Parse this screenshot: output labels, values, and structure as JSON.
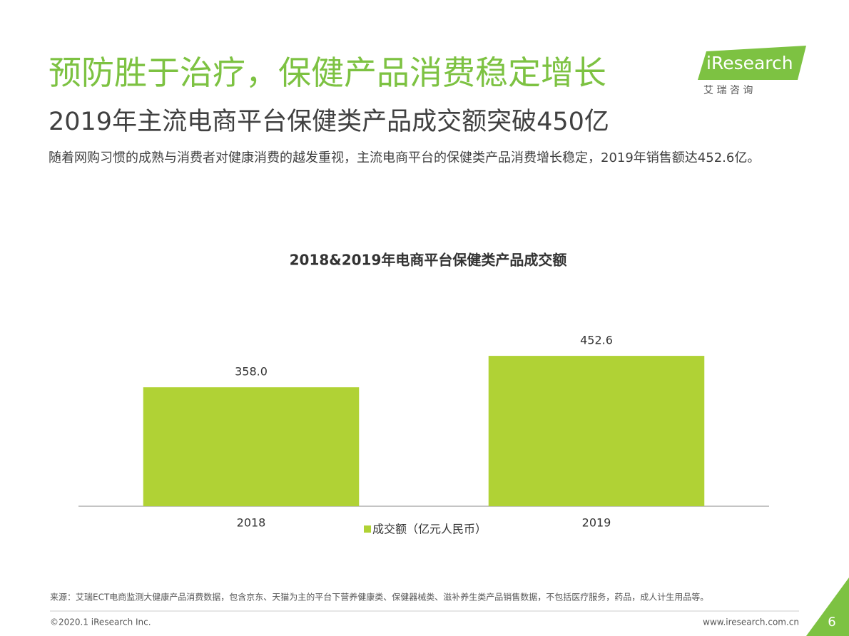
{
  "header": {
    "title": "预防胜于治疗，保健产品消费稳定增长",
    "subtitle": "2019年主流电商平台保健类产品成交额突破450亿",
    "description": "随着网购习惯的成熟与消费者对健康消费的越发重视，主流电商平台的保健类产品消费增长稳定，2019年销售额达452.6亿。"
  },
  "logo": {
    "name": "iResearch",
    "name_cn": "艾 瑞 咨 询"
  },
  "chart_data": {
    "type": "bar",
    "title": "2018&2019年电商平台保健类产品成交额",
    "categories": [
      "2018",
      "2019"
    ],
    "series": [
      {
        "name": "成交额（亿元人民币）",
        "color": "#b0d235",
        "values": [
          358.0,
          452.6
        ],
        "value_labels": [
          "358.0",
          "452.6"
        ]
      }
    ],
    "ylim": [
      0,
      500
    ]
  },
  "footer": {
    "source": "来源：艾瑞ECT电商监测大健康产品消费数据，包含京东、天猫为主的平台下营养健康类、保健器械类、滋补养生类产品销售数据，不包括医疗服务，药品，成人计生用品等。",
    "copyright": "©2020.1 iResearch Inc.",
    "website": "www.iresearch.com.cn",
    "page_number": 6
  }
}
